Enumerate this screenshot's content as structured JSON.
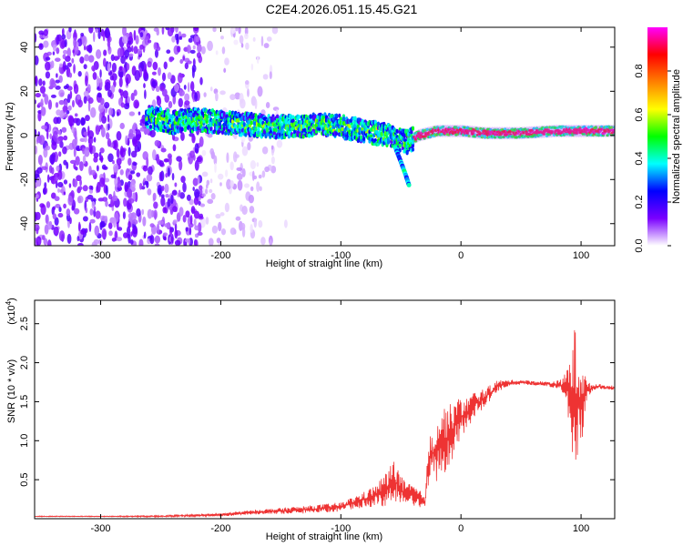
{
  "title": "C2E4.2026.051.15.45.G21",
  "chart_data": [
    {
      "type": "heatmap",
      "xlabel": "Height of straight line (km)",
      "ylabel": "Frequency (Hz)",
      "xlim": [
        -355,
        128
      ],
      "ylim": [
        -50,
        49
      ],
      "x_ticks": [
        -300,
        -200,
        -100,
        0,
        100
      ],
      "y_ticks": [
        -40,
        -20,
        0,
        20,
        40
      ],
      "x_tick_labels": [
        "-300",
        "-200",
        "-100",
        "0",
        "100"
      ],
      "y_tick_labels": [
        "-40",
        "-20",
        "0",
        "20",
        "40"
      ],
      "colorbar": {
        "label": "Normalized spectral amplitude",
        "range": [
          0,
          1
        ],
        "ticks": [
          0,
          0.2,
          0.4,
          0.6,
          0.8
        ],
        "tick_labels": [
          "0.0",
          "0.2",
          "0.4",
          "0.6",
          "0.8"
        ],
        "colormap": [
          "#ffffff",
          "#7a00ff",
          "#0000ff",
          "#00ffff",
          "#00ff00",
          "#ffff00",
          "#ff8000",
          "#ff0000",
          "#ff00ff"
        ]
      },
      "ridge": [
        {
          "x": -260,
          "f": 8
        },
        {
          "x": -240,
          "f": 6
        },
        {
          "x": -220,
          "f": 7
        },
        {
          "x": -200,
          "f": 6
        },
        {
          "x": -180,
          "f": 5
        },
        {
          "x": -160,
          "f": 4
        },
        {
          "x": -140,
          "f": 4
        },
        {
          "x": -120,
          "f": 5
        },
        {
          "x": -100,
          "f": 4
        },
        {
          "x": -80,
          "f": 2
        },
        {
          "x": -60,
          "f": 0
        },
        {
          "x": -45,
          "f": -3
        },
        {
          "x": -35,
          "f": 0
        },
        {
          "x": -20,
          "f": 2
        },
        {
          "x": 0,
          "f": 2
        },
        {
          "x": 20,
          "f": 1
        },
        {
          "x": 50,
          "f": 1
        },
        {
          "x": 80,
          "f": 2
        },
        {
          "x": 100,
          "f": 2
        },
        {
          "x": 128,
          "f": 2
        }
      ],
      "branch": [
        {
          "x": -55,
          "f": -5
        },
        {
          "x": -50,
          "f": -12
        },
        {
          "x": -46,
          "f": -18
        },
        {
          "x": -43,
          "f": -23
        }
      ]
    },
    {
      "type": "line",
      "xlabel": "Height of straight line (km)",
      "ylabel": "SNR (10 * v/v)",
      "scale_label": "(x10",
      "scale_exponent": "4",
      "scale_close": ")",
      "xlim": [
        -355,
        128
      ],
      "ylim": [
        0,
        2.8
      ],
      "x_ticks": [
        -300,
        -200,
        -100,
        0,
        100
      ],
      "y_ticks": [
        0.5,
        1.0,
        1.5,
        2.0,
        2.5
      ],
      "x_tick_labels": [
        "-300",
        "-200",
        "-100",
        "0",
        "100"
      ],
      "y_tick_labels": [
        "0.5",
        "1.0",
        "1.5",
        "2.0",
        "2.5"
      ],
      "series": [
        {
          "color": "#ee3333",
          "x": [
            -355,
            -300,
            -250,
            -200,
            -175,
            -150,
            -125,
            -100,
            -90,
            -80,
            -70,
            -60,
            -55,
            -50,
            -45,
            -40,
            -35,
            -30,
            -28,
            -25,
            -20,
            -15,
            -10,
            -5,
            0,
            5,
            10,
            15,
            20,
            25,
            30,
            40,
            50,
            60,
            70,
            80,
            85,
            90,
            95,
            100,
            105,
            110,
            115,
            120,
            128
          ],
          "y": [
            0.03,
            0.03,
            0.03,
            0.05,
            0.08,
            0.1,
            0.12,
            0.15,
            0.2,
            0.25,
            0.3,
            0.4,
            0.5,
            0.35,
            0.3,
            0.3,
            0.25,
            0.22,
            0.55,
            0.8,
            0.9,
            1.0,
            1.05,
            1.2,
            1.3,
            1.35,
            1.45,
            1.5,
            1.55,
            1.62,
            1.7,
            1.74,
            1.75,
            1.74,
            1.73,
            1.72,
            1.7,
            1.65,
            1.45,
            1.5,
            1.65,
            1.68,
            1.7,
            1.68,
            1.68
          ],
          "jitter": [
            0.005,
            0.005,
            0.01,
            0.02,
            0.03,
            0.04,
            0.05,
            0.06,
            0.08,
            0.1,
            0.15,
            0.25,
            0.3,
            0.2,
            0.15,
            0.15,
            0.12,
            0.1,
            0.2,
            0.35,
            0.45,
            0.45,
            0.4,
            0.35,
            0.25,
            0.2,
            0.18,
            0.15,
            0.12,
            0.1,
            0.08,
            0.04,
            0.03,
            0.03,
            0.03,
            0.05,
            0.1,
            0.4,
            1.05,
            0.6,
            0.1,
            0.05,
            0.03,
            0.03,
            0.03
          ]
        }
      ]
    }
  ]
}
